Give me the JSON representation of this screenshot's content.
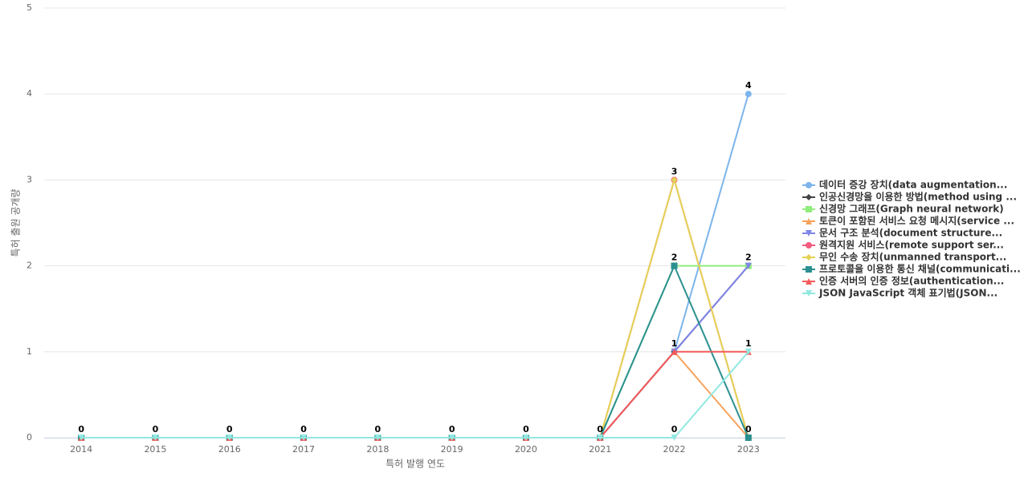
{
  "chart_data": {
    "type": "line",
    "x_label": "특허 발행 연도",
    "y_label": "특허 출원 공개량",
    "categories": [
      "2014",
      "2015",
      "2016",
      "2017",
      "2018",
      "2019",
      "2020",
      "2021",
      "2022",
      "2023"
    ],
    "ylim": [
      0,
      5
    ],
    "yticks": [
      0,
      1,
      2,
      3,
      4,
      5
    ],
    "grid": true,
    "legend": "right",
    "series": [
      {
        "name": "데이터 증강 장치(data augmentation...",
        "color": "#7cb5ec",
        "marker": "circle",
        "values": [
          0,
          0,
          0,
          0,
          0,
          0,
          0,
          0,
          1,
          4
        ]
      },
      {
        "name": "인공신경망을 이용한 방법(method using ...",
        "color": "#434348",
        "marker": "diamond",
        "values": [
          0,
          0,
          0,
          0,
          0,
          0,
          0,
          0,
          1,
          2
        ]
      },
      {
        "name": "신경망 그래프(Graph neural network)",
        "color": "#90ed7d",
        "marker": "square",
        "values": [
          0,
          0,
          0,
          0,
          0,
          0,
          0,
          0,
          2,
          2
        ]
      },
      {
        "name": "토큰이 포함된 서비스 요청 메시지(service ...",
        "color": "#f7a35c",
        "marker": "triangle",
        "values": [
          0,
          0,
          0,
          0,
          0,
          0,
          0,
          0,
          1,
          0
        ]
      },
      {
        "name": "문서 구조 분석(document structure...",
        "color": "#8085e9",
        "marker": "triangle-down",
        "values": [
          0,
          0,
          0,
          0,
          0,
          0,
          0,
          0,
          1,
          2
        ]
      },
      {
        "name": "원격지원 서비스(remote support ser...",
        "color": "#f15c80",
        "marker": "circle",
        "values": [
          0,
          0,
          0,
          0,
          0,
          0,
          0,
          0,
          3,
          0
        ]
      },
      {
        "name": "무인 수송 장치(unmanned transport...",
        "color": "#e4d354",
        "marker": "diamond",
        "values": [
          0,
          0,
          0,
          0,
          0,
          0,
          0,
          0,
          3,
          0
        ]
      },
      {
        "name": "프로토콜을 이용한 통신 채널(communicati...",
        "color": "#2b908f",
        "marker": "square",
        "values": [
          0,
          0,
          0,
          0,
          0,
          0,
          0,
          0,
          2,
          0
        ]
      },
      {
        "name": "인증 서버의 인증 정보(authentication...",
        "color": "#f45b5b",
        "marker": "triangle",
        "values": [
          0,
          0,
          0,
          0,
          0,
          0,
          0,
          0,
          1,
          1
        ]
      },
      {
        "name": "JSON JavaScript 객체 표기법(JSON...",
        "color": "#91e8e1",
        "marker": "triangle-down",
        "values": [
          0,
          0,
          0,
          0,
          0,
          0,
          0,
          0,
          0,
          1
        ]
      }
    ]
  }
}
